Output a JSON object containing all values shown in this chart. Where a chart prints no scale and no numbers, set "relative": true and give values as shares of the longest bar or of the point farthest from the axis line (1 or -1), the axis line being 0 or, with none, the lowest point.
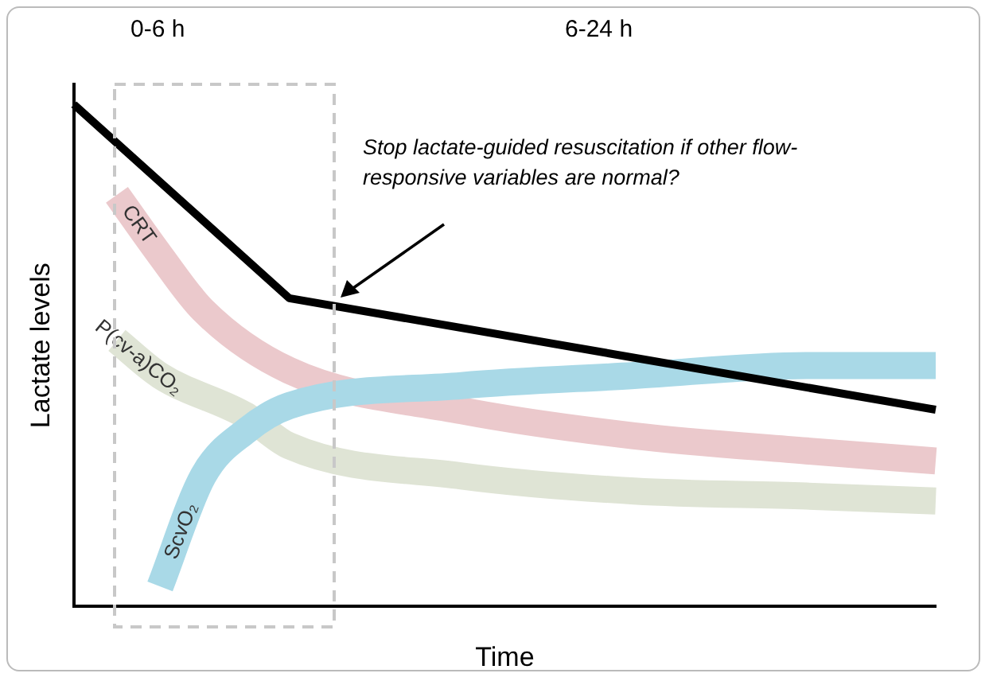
{
  "chart_data": {
    "type": "line",
    "relative": true,
    "xlabel": "Time",
    "ylabel": "Lactate levels",
    "grid": false,
    "legend": false,
    "marker": "none",
    "categories": [
      null,
      null,
      null,
      null,
      null,
      null,
      null,
      null,
      null,
      null,
      null,
      null,
      null,
      null,
      null,
      null,
      null,
      null,
      null,
      null,
      null
    ],
    "annotations": [
      "0-6 h",
      "6-24 h",
      "Stop lactate-guided resuscitation if other flow-responsive variables  are normal?"
    ],
    "series": [
      {
        "name": "P(cv-a)CO₂",
        "color": "#dfe4d5",
        "values": [
          null,
          0.53,
          0.46,
          null,
          0.38,
          0.32,
          null,
          null,
          null,
          0.26,
          null,
          null,
          null,
          0.23,
          null,
          null,
          null,
          0.22,
          null,
          null,
          0.21
        ]
      },
      {
        "name": "CRT",
        "color": "#ebc9cc",
        "values": [
          null,
          0.82,
          0.7,
          0.59,
          null,
          0.47,
          null,
          null,
          null,
          0.39,
          null,
          null,
          null,
          0.34,
          null,
          null,
          null,
          0.31,
          null,
          null,
          0.29
        ]
      },
      {
        "name": "ScvO₂",
        "color": "#a9d9e7",
        "values": [
          null,
          null,
          0.04,
          0.26,
          0.35,
          0.4,
          null,
          null,
          null,
          0.44,
          null,
          null,
          null,
          0.46,
          null,
          null,
          null,
          0.48,
          null,
          null,
          0.48
        ]
      },
      {
        "color": "#000000",
        "values": [
          1,
          null,
          null,
          null,
          null,
          0.614,
          null,
          null,
          null,
          null,
          null,
          null,
          null,
          null,
          null,
          null,
          null,
          null,
          null,
          null,
          0.392
        ]
      }
    ]
  }
}
